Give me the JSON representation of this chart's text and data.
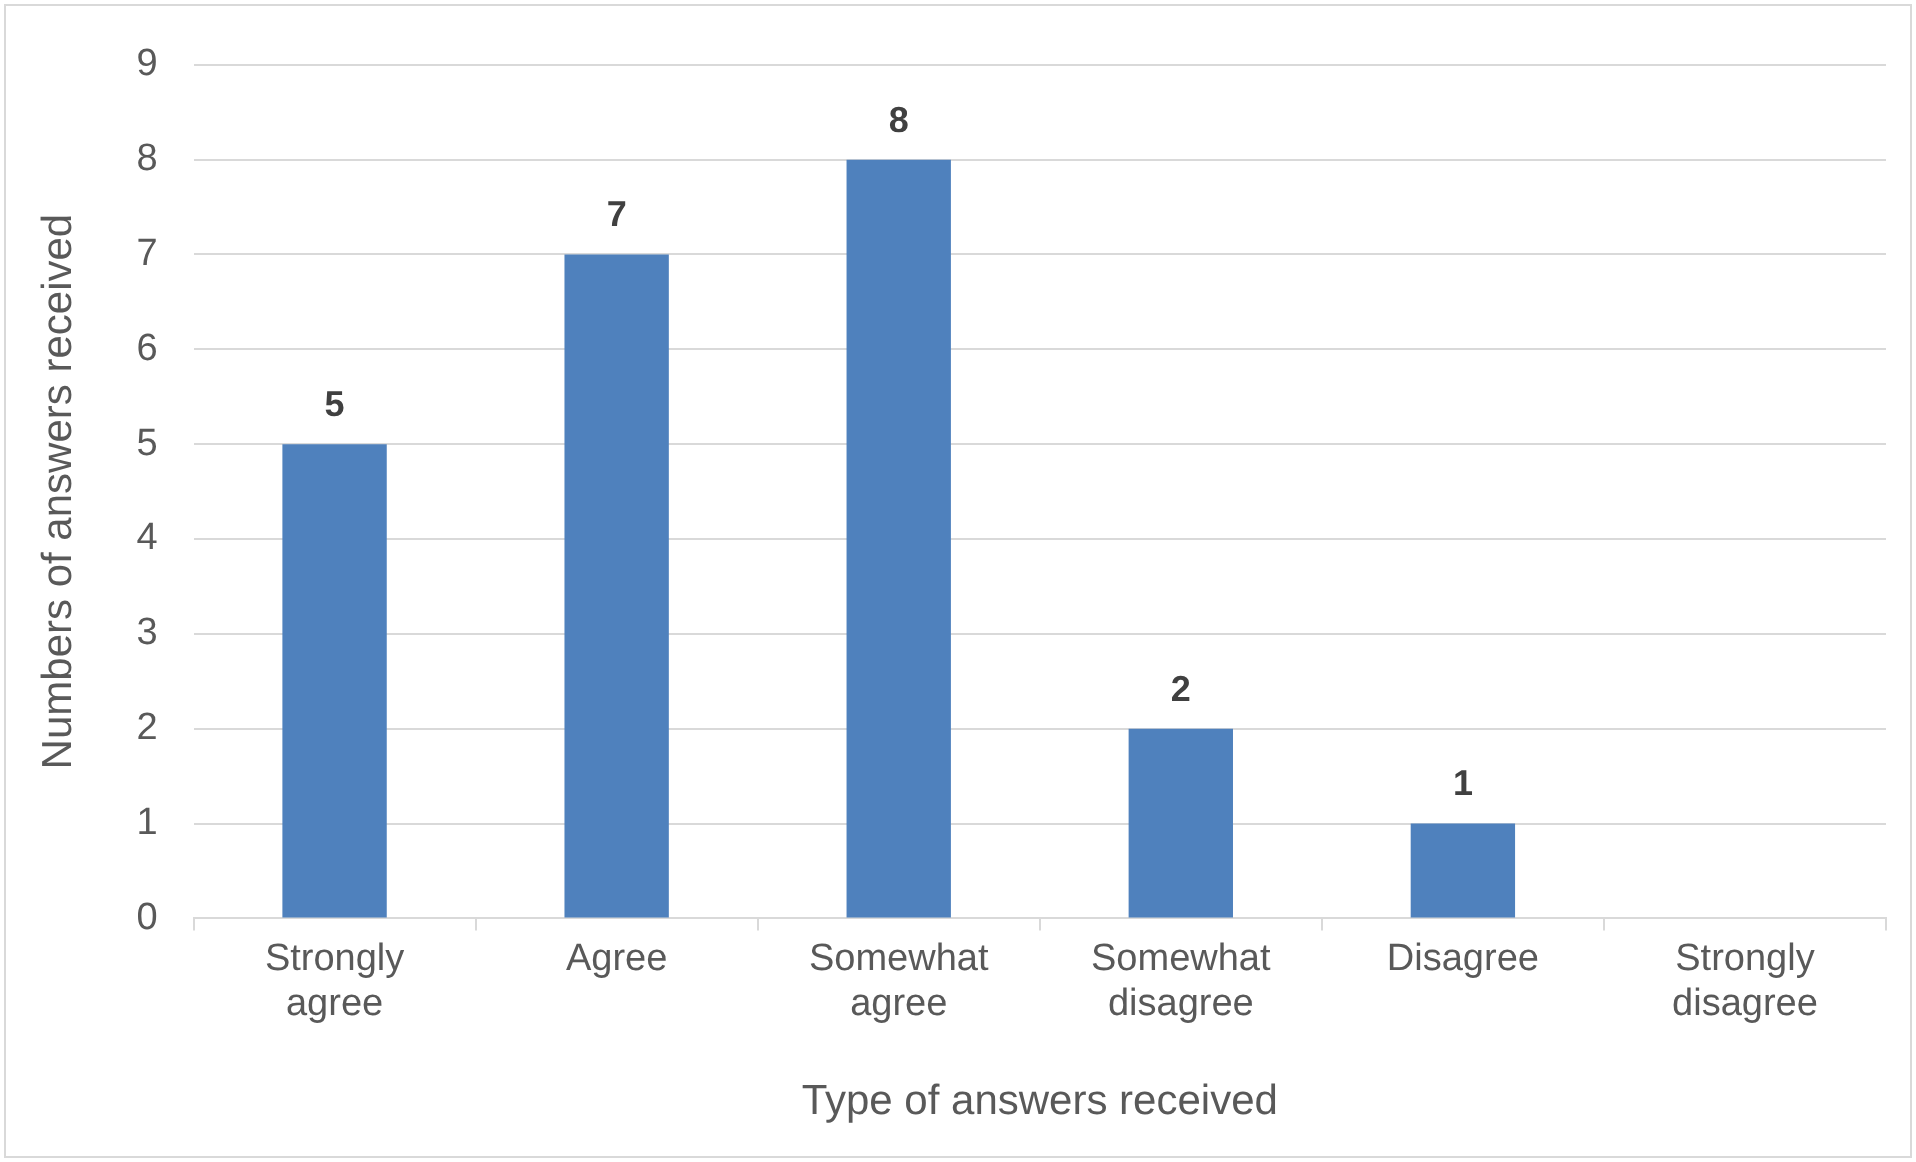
{
  "chart_data": {
    "type": "bar",
    "xlabel": "Type of answers received",
    "ylabel": "Numbers of answers received",
    "categories": [
      "Strongly agree",
      "Agree",
      "Somewhat agree",
      "Somewhat disagree",
      "Disagree",
      "Strongly disagree"
    ],
    "values": [
      5,
      7,
      8,
      2,
      1,
      0
    ],
    "color": "#4f81bd",
    "value_labels": [
      "5",
      "7",
      "8",
      "2",
      "1",
      null
    ],
    "ylim": [
      0,
      9
    ],
    "yticks": [
      0,
      1,
      2,
      3,
      4,
      5,
      6,
      7,
      8,
      9
    ],
    "grid": "y",
    "legend": false
  }
}
